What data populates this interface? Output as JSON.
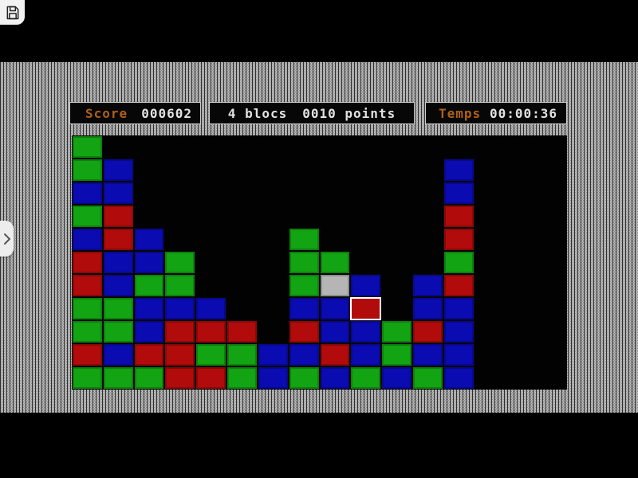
{
  "overlay": {
    "save_icon": "floppy-disk",
    "side_tab_icon": "chevron-right"
  },
  "panels": {
    "score": {
      "label": "Score",
      "value": "000602"
    },
    "selection": {
      "blocks": "4 blocs",
      "points": "0010 points"
    },
    "time": {
      "label": "Temps",
      "value": "00:00:36"
    }
  },
  "colors": {
    "accent_label": "#b06018",
    "value_text": "#e2e2e2",
    "green": "#12a412",
    "blue": "#0b0bb2",
    "red": "#b20b0b",
    "silver": "#b5b5b5",
    "field_bg": "#020202"
  },
  "board": {
    "cols": 16,
    "rows_count": 11,
    "legend": {
      "G": "green",
      "B": "blue",
      "R": "red",
      "S": "silver",
      ".": "empty"
    },
    "highlight": {
      "row": 7,
      "col": 9
    },
    "rows": [
      "G...............",
      "GB..........B...",
      "BB..........B...",
      "GR..........R...",
      "BRB....G....R...",
      "RBBG...GG...G...",
      "RBGG...GSB.BR...",
      "GGBBB..BBR.BB...",
      "GGBRRR.RBBGRB...",
      "RBRRGGBBRBGBB...",
      "GGGRRGBGBGBGB..."
    ]
  }
}
